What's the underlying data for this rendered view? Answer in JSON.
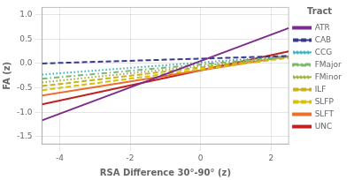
{
  "chart_data": {
    "type": "line",
    "xlabel": "RSA Difference 30°-90° (z)",
    "ylabel": "FA (z)",
    "legend_title": "Tract",
    "x": [
      -4.5,
      2.5
    ],
    "series": [
      {
        "name": "ATR",
        "color": "#7b2d8b",
        "line_style": "solid",
        "values": [
          -1.165,
          0.725
        ]
      },
      {
        "name": "CAB",
        "color": "#3a3a8c",
        "line_style": "dashed",
        "values": [
          0.001,
          0.155
        ]
      },
      {
        "name": "CCG",
        "color": "#3ab0c0",
        "line_style": "dotted",
        "values": [
          -0.2275,
          0.1575
        ]
      },
      {
        "name": "FMajor",
        "color": "#7ab870",
        "line_style": "dashdot",
        "values": [
          -0.3125,
          0.1425
        ]
      },
      {
        "name": "FMinor",
        "color": "#a0b040",
        "line_style": "dotted",
        "values": [
          -0.3875,
          0.1375
        ]
      },
      {
        "name": "ILF",
        "color": "#c8b020",
        "line_style": "dashed",
        "values": [
          -0.4625,
          0.1325
        ]
      },
      {
        "name": "SLFP",
        "color": "#d8c000",
        "line_style": "dashed",
        "values": [
          -0.5475,
          0.1175
        ]
      },
      {
        "name": "SLFT",
        "color": "#e87030",
        "line_style": "solid",
        "values": [
          -0.6575,
          0.1475
        ]
      },
      {
        "name": "UNC",
        "color": "#c02020",
        "line_style": "solid",
        "values": [
          -0.8375,
          0.2475
        ]
      }
    ],
    "xlim": [
      -4.5,
      2.5
    ],
    "ylim": [
      -1.65,
      1.15
    ],
    "xticks": [
      -4,
      -2,
      0,
      2
    ],
    "yticks": [
      {
        "value": -1.5,
        "label": "-1.5"
      },
      {
        "value": -1.0,
        "label": "-1.0"
      },
      {
        "value": -0.5,
        "label": "-0.5"
      },
      {
        "value": 0.0,
        "label": "0.0"
      },
      {
        "value": 0.5,
        "label": "0.5"
      },
      {
        "value": 1.0,
        "label": "1.0"
      }
    ],
    "grid": true,
    "legend": "right"
  }
}
